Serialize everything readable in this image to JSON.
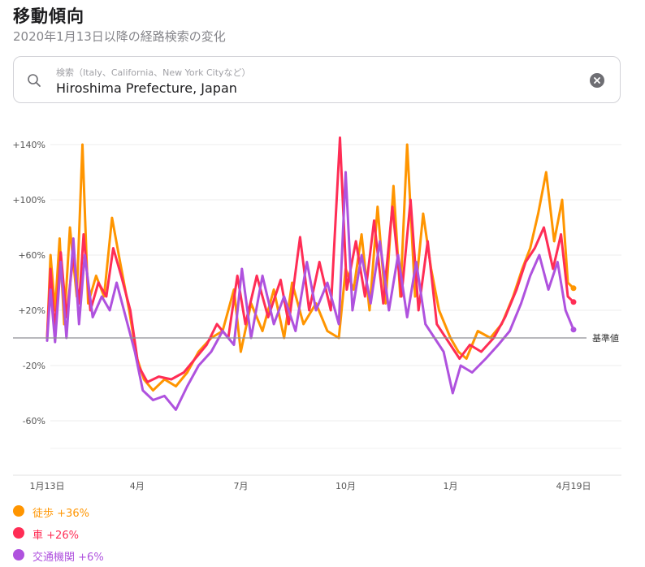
{
  "header": {
    "title": "移動傾向",
    "subtitle": "2020年1月13日以降の経路検索の変化"
  },
  "search": {
    "placeholder": "検索（Italy、California、New York Cityなど）",
    "value": "Hiroshima Prefecture, Japan"
  },
  "legend": [
    {
      "label": "徒歩",
      "value": "+36%",
      "color": "#ff9500"
    },
    {
      "label": "車",
      "value": "+26%",
      "color": "#ff2d55"
    },
    {
      "label": "交通機関",
      "value": "+6%",
      "color": "#af52de"
    }
  ],
  "chart_data": {
    "type": "line",
    "baseline_label": "基準値",
    "y_ticks": [
      "+140%",
      "+100%",
      "+60%",
      "+20%",
      "-20%",
      "-60%"
    ],
    "y_tick_values": [
      140,
      100,
      60,
      20,
      -20,
      -60
    ],
    "ylim": [
      -100,
      160
    ],
    "x_ticks": [
      "1月13日",
      "4月",
      "7月",
      "10月",
      "1月",
      "4月19日"
    ],
    "x_tick_dates": [
      "2020-01-13",
      "2020-04-01",
      "2020-07-01",
      "2020-10-01",
      "2021-01-01",
      "2021-04-19"
    ],
    "x_range": [
      "2020-01-13",
      "2021-04-19"
    ],
    "grid": true,
    "series": [
      {
        "name": "徒歩",
        "color": "#ff9500",
        "end_label": "+36%",
        "points": [
          [
            "2020-01-13",
            0
          ],
          [
            "2020-01-16",
            60
          ],
          [
            "2020-01-20",
            20
          ],
          [
            "2020-01-24",
            72
          ],
          [
            "2020-01-28",
            10
          ],
          [
            "2020-02-02",
            80
          ],
          [
            "2020-02-08",
            30
          ],
          [
            "2020-02-13",
            140
          ],
          [
            "2020-02-18",
            25
          ],
          [
            "2020-02-25",
            45
          ],
          [
            "2020-03-03",
            30
          ],
          [
            "2020-03-10",
            87
          ],
          [
            "2020-03-17",
            55
          ],
          [
            "2020-03-25",
            20
          ],
          [
            "2020-04-01",
            -15
          ],
          [
            "2020-04-07",
            -30
          ],
          [
            "2020-04-15",
            -38
          ],
          [
            "2020-04-25",
            -30
          ],
          [
            "2020-05-05",
            -35
          ],
          [
            "2020-05-15",
            -25
          ],
          [
            "2020-05-25",
            -10
          ],
          [
            "2020-06-05",
            0
          ],
          [
            "2020-06-15",
            5
          ],
          [
            "2020-06-25",
            35
          ],
          [
            "2020-07-01",
            -10
          ],
          [
            "2020-07-10",
            25
          ],
          [
            "2020-07-20",
            5
          ],
          [
            "2020-07-30",
            35
          ],
          [
            "2020-08-08",
            0
          ],
          [
            "2020-08-15",
            40
          ],
          [
            "2020-08-25",
            10
          ],
          [
            "2020-09-05",
            25
          ],
          [
            "2020-09-15",
            5
          ],
          [
            "2020-09-25",
            0
          ],
          [
            "2020-10-01",
            50
          ],
          [
            "2020-10-08",
            35
          ],
          [
            "2020-10-15",
            75
          ],
          [
            "2020-10-22",
            20
          ],
          [
            "2020-10-29",
            95
          ],
          [
            "2020-11-05",
            25
          ],
          [
            "2020-11-12",
            110
          ],
          [
            "2020-11-18",
            30
          ],
          [
            "2020-11-24",
            140
          ],
          [
            "2020-12-01",
            30
          ],
          [
            "2020-12-08",
            90
          ],
          [
            "2020-12-15",
            50
          ],
          [
            "2020-12-22",
            20
          ],
          [
            "2021-01-01",
            0
          ],
          [
            "2021-01-08",
            -10
          ],
          [
            "2021-01-15",
            -15
          ],
          [
            "2021-01-25",
            5
          ],
          [
            "2021-02-05",
            0
          ],
          [
            "2021-02-15",
            10
          ],
          [
            "2021-02-25",
            30
          ],
          [
            "2021-03-05",
            50
          ],
          [
            "2021-03-12",
            65
          ],
          [
            "2021-03-19",
            90
          ],
          [
            "2021-03-26",
            120
          ],
          [
            "2021-04-02",
            70
          ],
          [
            "2021-04-09",
            100
          ],
          [
            "2021-04-14",
            40
          ],
          [
            "2021-04-19",
            36
          ]
        ]
      },
      {
        "name": "車",
        "color": "#ff2d55",
        "end_label": "+26%",
        "points": [
          [
            "2020-01-13",
            0
          ],
          [
            "2020-01-16",
            50
          ],
          [
            "2020-01-20",
            5
          ],
          [
            "2020-01-25",
            62
          ],
          [
            "2020-01-30",
            15
          ],
          [
            "2020-02-05",
            60
          ],
          [
            "2020-02-10",
            25
          ],
          [
            "2020-02-14",
            75
          ],
          [
            "2020-02-20",
            20
          ],
          [
            "2020-02-27",
            40
          ],
          [
            "2020-03-05",
            30
          ],
          [
            "2020-03-11",
            65
          ],
          [
            "2020-03-18",
            45
          ],
          [
            "2020-03-26",
            20
          ],
          [
            "2020-04-02",
            -20
          ],
          [
            "2020-04-10",
            -32
          ],
          [
            "2020-04-20",
            -28
          ],
          [
            "2020-05-01",
            -30
          ],
          [
            "2020-05-12",
            -25
          ],
          [
            "2020-05-22",
            -15
          ],
          [
            "2020-06-01",
            -5
          ],
          [
            "2020-06-10",
            10
          ],
          [
            "2020-06-20",
            0
          ],
          [
            "2020-06-28",
            45
          ],
          [
            "2020-07-05",
            10
          ],
          [
            "2020-07-15",
            45
          ],
          [
            "2020-07-25",
            15
          ],
          [
            "2020-08-05",
            42
          ],
          [
            "2020-08-12",
            10
          ],
          [
            "2020-08-22",
            73
          ],
          [
            "2020-08-30",
            20
          ],
          [
            "2020-09-08",
            55
          ],
          [
            "2020-09-18",
            20
          ],
          [
            "2020-09-26",
            145
          ],
          [
            "2020-10-02",
            35
          ],
          [
            "2020-10-10",
            70
          ],
          [
            "2020-10-18",
            30
          ],
          [
            "2020-10-26",
            85
          ],
          [
            "2020-11-03",
            25
          ],
          [
            "2020-11-11",
            95
          ],
          [
            "2020-11-19",
            30
          ],
          [
            "2020-11-27",
            100
          ],
          [
            "2020-12-04",
            20
          ],
          [
            "2020-12-12",
            70
          ],
          [
            "2020-12-20",
            10
          ],
          [
            "2021-01-01",
            -5
          ],
          [
            "2021-01-09",
            -15
          ],
          [
            "2021-01-18",
            -5
          ],
          [
            "2021-01-28",
            -10
          ],
          [
            "2021-02-08",
            0
          ],
          [
            "2021-02-18",
            15
          ],
          [
            "2021-02-28",
            35
          ],
          [
            "2021-03-08",
            55
          ],
          [
            "2021-03-16",
            65
          ],
          [
            "2021-03-24",
            80
          ],
          [
            "2021-04-01",
            50
          ],
          [
            "2021-04-08",
            75
          ],
          [
            "2021-04-14",
            30
          ],
          [
            "2021-04-19",
            26
          ]
        ]
      },
      {
        "name": "交通機関",
        "color": "#af52de",
        "end_label": "+6%",
        "points": [
          [
            "2020-01-13",
            -2
          ],
          [
            "2020-01-16",
            35
          ],
          [
            "2020-01-20",
            -3
          ],
          [
            "2020-01-25",
            55
          ],
          [
            "2020-01-30",
            0
          ],
          [
            "2020-02-05",
            72
          ],
          [
            "2020-02-10",
            10
          ],
          [
            "2020-02-15",
            60
          ],
          [
            "2020-02-22",
            15
          ],
          [
            "2020-03-01",
            30
          ],
          [
            "2020-03-08",
            20
          ],
          [
            "2020-03-14",
            40
          ],
          [
            "2020-03-22",
            15
          ],
          [
            "2020-03-30",
            -10
          ],
          [
            "2020-04-06",
            -38
          ],
          [
            "2020-04-15",
            -45
          ],
          [
            "2020-04-25",
            -42
          ],
          [
            "2020-05-05",
            -52
          ],
          [
            "2020-05-15",
            -35
          ],
          [
            "2020-05-25",
            -20
          ],
          [
            "2020-06-05",
            -10
          ],
          [
            "2020-06-15",
            5
          ],
          [
            "2020-06-25",
            -5
          ],
          [
            "2020-07-02",
            50
          ],
          [
            "2020-07-10",
            0
          ],
          [
            "2020-07-20",
            45
          ],
          [
            "2020-07-30",
            10
          ],
          [
            "2020-08-08",
            30
          ],
          [
            "2020-08-18",
            5
          ],
          [
            "2020-08-28",
            55
          ],
          [
            "2020-09-05",
            20
          ],
          [
            "2020-09-15",
            40
          ],
          [
            "2020-09-25",
            10
          ],
          [
            "2020-10-01",
            120
          ],
          [
            "2020-10-07",
            20
          ],
          [
            "2020-10-15",
            60
          ],
          [
            "2020-10-23",
            25
          ],
          [
            "2020-10-31",
            70
          ],
          [
            "2020-11-08",
            20
          ],
          [
            "2020-11-16",
            60
          ],
          [
            "2020-11-24",
            15
          ],
          [
            "2020-12-02",
            55
          ],
          [
            "2020-12-10",
            10
          ],
          [
            "2020-12-18",
            0
          ],
          [
            "2020-12-26",
            -10
          ],
          [
            "2021-01-03",
            -40
          ],
          [
            "2021-01-10",
            -20
          ],
          [
            "2021-01-20",
            -25
          ],
          [
            "2021-02-01",
            -15
          ],
          [
            "2021-02-12",
            -5
          ],
          [
            "2021-02-22",
            5
          ],
          [
            "2021-03-04",
            25
          ],
          [
            "2021-03-12",
            45
          ],
          [
            "2021-03-20",
            60
          ],
          [
            "2021-03-28",
            35
          ],
          [
            "2021-04-05",
            55
          ],
          [
            "2021-04-12",
            20
          ],
          [
            "2021-04-19",
            6
          ]
        ]
      }
    ]
  }
}
